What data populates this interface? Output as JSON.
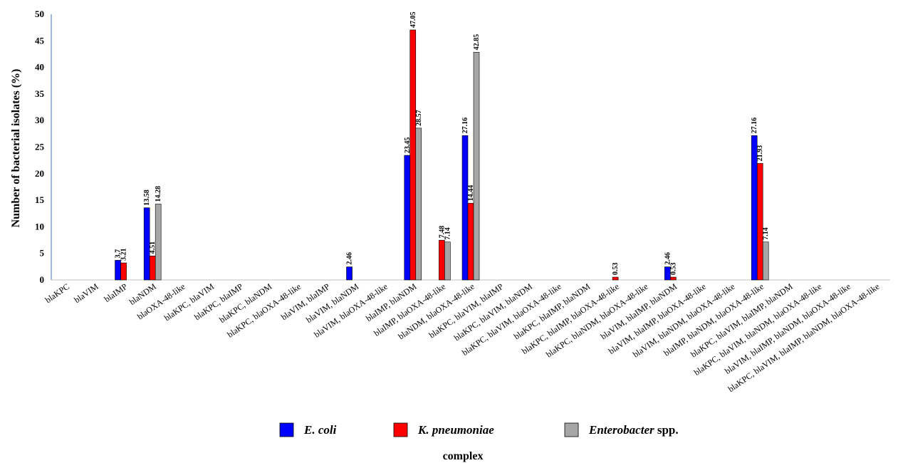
{
  "chart_data": {
    "type": "bar",
    "title": "",
    "ylabel": "Number of bacterial isolates (%)",
    "xlabel": "complex",
    "ylim": [
      0,
      50
    ],
    "yticks": [
      0,
      5,
      10,
      15,
      20,
      25,
      30,
      35,
      40,
      45,
      50
    ],
    "grid": false,
    "legend_position": "bottom",
    "categories": [
      "blaKPC",
      "blaVIM",
      "blaIMP",
      "blaNDM",
      "blaOXA-48-like",
      "blaKPC, blaVIM",
      "blaKPC, blaIMP",
      "blaKPC, blaNDM",
      "blaKPC, blaOXA-48-like",
      "blaVIM, blaIMP",
      "blaVIM, blaNDM",
      "blaVIM, blaOXA-48-like",
      "blaIMP, blaNDM",
      "blaIMP, blaOXA-48-like",
      "blaNDM, blaOXA-48-like",
      "blaKPC, blaVIM, blaIMP",
      "blaKPC, blaVIM, blaNDM",
      "blaKPC, blaVIM, blaOXA-48-like",
      "blaKPC, blaIMP, blaNDM",
      "blaKPC, blaIMP, blaOXA-48-like",
      "blaKPC, blaNDM, blaOXA-48-like",
      "blaVIM, blaIMP, blaNDM",
      "blaVIM, blaIMP, blaOXA-48-like",
      "blaVIM, blaNDM, blaOXA-48-like",
      "blaIMP, blaNDM, blaOXA-48-like",
      "blaKPC, blaVIM, blaIMP, blaNDM",
      "blaKPC, blaVIM, blaNDM, blaOXA-48-like",
      "blaVIM, blaIMP, blaNDM, blaOXA-48-like",
      "blaKPC, blaVIM, blaIMP, blaNDM, blaOXA-48-like"
    ],
    "series": [
      {
        "name": "E. coli",
        "legend_italic": "E. coli",
        "legend_plain": "",
        "color": "#0000ff",
        "values": [
          0,
          0,
          3.7,
          13.58,
          0,
          0,
          0,
          0,
          0,
          0,
          2.46,
          0,
          23.45,
          0,
          27.16,
          0,
          0,
          0,
          0,
          0,
          0,
          2.46,
          0,
          0,
          27.16,
          0,
          0,
          0,
          0
        ],
        "labels": [
          "",
          "",
          "3.7",
          "13.58",
          "",
          "",
          "",
          "",
          "",
          "",
          "2.46",
          "",
          "23.45",
          "",
          "27.16",
          "",
          "",
          "",
          "",
          "",
          "",
          "2.46",
          "",
          "",
          "27.16",
          "",
          "",
          "",
          ""
        ]
      },
      {
        "name": "K. pneumoniae",
        "legend_italic": "K. pneumoniae",
        "legend_plain": "",
        "color": "#ff0000",
        "values": [
          0,
          0,
          3.21,
          4.51,
          0,
          0,
          0,
          0,
          0,
          0,
          0,
          0,
          47.05,
          7.48,
          14.44,
          0,
          0,
          0,
          0,
          0.53,
          0,
          0.53,
          0,
          0,
          21.93,
          0,
          0,
          0,
          0
        ],
        "labels": [
          "",
          "",
          "3.21",
          "4.51",
          "",
          "",
          "",
          "",
          "",
          "",
          "",
          "",
          "47.05",
          "7.48",
          "14.44",
          "",
          "",
          "",
          "",
          "0.53",
          "",
          "0.53",
          "",
          "",
          "21.93",
          "",
          "",
          "",
          ""
        ]
      },
      {
        "name": "Enterobacter spp.",
        "legend_italic": "Enterobacter",
        "legend_plain": " spp.",
        "color": "#a6a6a6",
        "values": [
          0,
          0,
          0,
          14.28,
          0,
          0,
          0,
          0,
          0,
          0,
          0,
          0,
          28.57,
          7.14,
          42.85,
          0,
          0,
          0,
          0,
          0,
          0,
          0,
          0,
          0,
          7.14,
          0,
          0,
          0,
          0
        ],
        "labels": [
          "",
          "",
          "",
          "14.28",
          "",
          "",
          "",
          "",
          "",
          "",
          "",
          "",
          "28.57",
          "7.14",
          "42.85",
          "",
          "",
          "",
          "",
          "",
          "",
          "",
          "",
          "",
          "7.14",
          "",
          "",
          "",
          ""
        ]
      }
    ]
  }
}
